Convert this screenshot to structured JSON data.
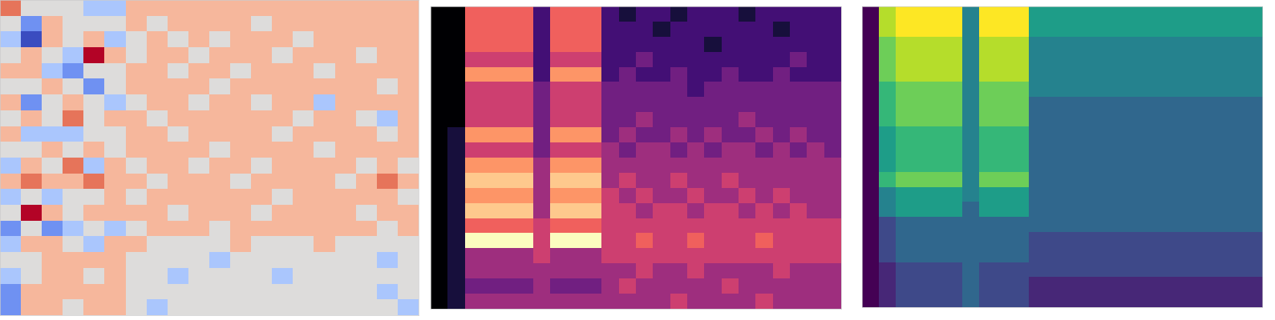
{
  "chart_data": [
    {
      "type": "heatmap",
      "color": "coolwarm",
      "tick_labels": false,
      "cells": [
        [
          2,
          0,
          0,
          0,
          -1,
          -1,
          1,
          1,
          1,
          1,
          1,
          1,
          1,
          1,
          1,
          1,
          1,
          1,
          1,
          1
        ],
        [
          0,
          -2,
          1,
          0,
          0,
          0,
          1,
          0,
          1,
          1,
          1,
          1,
          0,
          1,
          1,
          1,
          1,
          1,
          1,
          1
        ],
        [
          -1,
          -3,
          1,
          0,
          1,
          -1,
          0,
          1,
          0,
          1,
          0,
          1,
          1,
          1,
          0,
          1,
          1,
          1,
          1,
          1
        ],
        [
          0,
          1,
          0,
          -1,
          3,
          1,
          0,
          1,
          1,
          0,
          1,
          1,
          1,
          0,
          1,
          1,
          1,
          0,
          1,
          1
        ],
        [
          1,
          1,
          -1,
          -2,
          0,
          0,
          1,
          1,
          0,
          1,
          1,
          0,
          1,
          1,
          1,
          0,
          1,
          1,
          1,
          1
        ],
        [
          0,
          0,
          1,
          0,
          -2,
          0,
          1,
          1,
          1,
          1,
          0,
          1,
          1,
          1,
          1,
          1,
          1,
          1,
          0,
          1
        ],
        [
          1,
          -2,
          0,
          1,
          0,
          -1,
          0,
          1,
          1,
          0,
          1,
          1,
          0,
          1,
          1,
          -1,
          1,
          1,
          1,
          1
        ],
        [
          0,
          1,
          0,
          2,
          0,
          1,
          1,
          0,
          1,
          1,
          1,
          1,
          1,
          1,
          0,
          1,
          1,
          0,
          -1,
          1
        ],
        [
          1,
          -1,
          -1,
          -1,
          0,
          0,
          1,
          1,
          0,
          1,
          1,
          1,
          1,
          0,
          1,
          1,
          1,
          1,
          0,
          1
        ],
        [
          0,
          0,
          1,
          0,
          1,
          0,
          1,
          1,
          1,
          1,
          0,
          1,
          1,
          1,
          1,
          0,
          1,
          1,
          1,
          1
        ],
        [
          -1,
          1,
          0,
          2,
          -1,
          1,
          0,
          1,
          1,
          0,
          1,
          1,
          0,
          1,
          1,
          1,
          1,
          0,
          1,
          0
        ],
        [
          1,
          2,
          1,
          1,
          2,
          1,
          1,
          0,
          1,
          1,
          1,
          0,
          1,
          1,
          1,
          1,
          0,
          1,
          2,
          1
        ],
        [
          -1,
          0,
          -1,
          0,
          0,
          1,
          0,
          1,
          1,
          1,
          1,
          1,
          1,
          0,
          1,
          1,
          1,
          1,
          1,
          0
        ],
        [
          0,
          3,
          1,
          0,
          1,
          1,
          1,
          1,
          0,
          1,
          1,
          1,
          0,
          1,
          1,
          1,
          1,
          0,
          1,
          1
        ],
        [
          -2,
          0,
          -2,
          -1,
          0,
          -1,
          0,
          1,
          1,
          1,
          0,
          1,
          1,
          1,
          1,
          1,
          1,
          1,
          0,
          1
        ],
        [
          -1,
          1,
          1,
          0,
          -1,
          1,
          1,
          0,
          0,
          0,
          0,
          1,
          0,
          0,
          0,
          1,
          0,
          0,
          0,
          0
        ],
        [
          0,
          0,
          1,
          1,
          1,
          1,
          0,
          0,
          0,
          0,
          -1,
          0,
          0,
          0,
          0,
          0,
          0,
          0,
          -1,
          0
        ],
        [
          -1,
          0,
          1,
          1,
          0,
          1,
          0,
          0,
          -1,
          0,
          0,
          0,
          0,
          -1,
          0,
          0,
          0,
          0,
          0,
          0
        ],
        [
          -2,
          1,
          1,
          1,
          1,
          1,
          0,
          0,
          0,
          0,
          0,
          0,
          0,
          0,
          0,
          0,
          0,
          0,
          -1,
          0
        ],
        [
          -2,
          1,
          1,
          0,
          1,
          1,
          0,
          -1,
          0,
          0,
          0,
          0,
          0,
          0,
          0,
          0,
          0,
          0,
          0,
          -1
        ]
      ]
    },
    {
      "type": "heatmap",
      "color": "magma",
      "tick_labels": false,
      "cells": [
        [
          0,
          0,
          6,
          6,
          6,
          6,
          2,
          6,
          6,
          6,
          2,
          1,
          2,
          2,
          1,
          2,
          2,
          2,
          1,
          2,
          2,
          2,
          2,
          2
        ],
        [
          0,
          0,
          6,
          6,
          6,
          6,
          2,
          6,
          6,
          6,
          2,
          2,
          2,
          1,
          2,
          2,
          2,
          2,
          2,
          2,
          1,
          2,
          2,
          2
        ],
        [
          0,
          0,
          6,
          6,
          6,
          6,
          2,
          6,
          6,
          6,
          2,
          2,
          2,
          2,
          2,
          2,
          1,
          2,
          2,
          2,
          2,
          2,
          2,
          2
        ],
        [
          0,
          0,
          5,
          5,
          5,
          5,
          2,
          5,
          5,
          5,
          2,
          2,
          3,
          2,
          2,
          2,
          2,
          2,
          2,
          2,
          2,
          3,
          2,
          2
        ],
        [
          0,
          0,
          7,
          7,
          7,
          7,
          2,
          7,
          7,
          7,
          2,
          3,
          2,
          2,
          3,
          2,
          2,
          3,
          2,
          2,
          3,
          2,
          2,
          2
        ],
        [
          0,
          0,
          5,
          5,
          5,
          5,
          3,
          5,
          5,
          5,
          3,
          3,
          3,
          3,
          3,
          2,
          3,
          3,
          3,
          3,
          3,
          3,
          3,
          3
        ],
        [
          0,
          0,
          5,
          5,
          5,
          5,
          3,
          5,
          5,
          5,
          3,
          3,
          3,
          3,
          3,
          3,
          3,
          3,
          3,
          3,
          3,
          3,
          3,
          3
        ],
        [
          0,
          0,
          5,
          5,
          5,
          5,
          3,
          5,
          5,
          5,
          3,
          3,
          4,
          3,
          3,
          3,
          3,
          3,
          4,
          3,
          3,
          3,
          3,
          3
        ],
        [
          0,
          1,
          7,
          7,
          7,
          7,
          3,
          7,
          7,
          7,
          3,
          4,
          3,
          3,
          4,
          3,
          4,
          3,
          3,
          4,
          3,
          4,
          3,
          3
        ],
        [
          0,
          1,
          5,
          5,
          5,
          5,
          3,
          5,
          5,
          5,
          4,
          3,
          4,
          4,
          3,
          4,
          3,
          4,
          4,
          3,
          4,
          3,
          4,
          3
        ],
        [
          0,
          1,
          7,
          7,
          7,
          7,
          4,
          7,
          7,
          7,
          4,
          4,
          4,
          4,
          4,
          4,
          4,
          4,
          4,
          4,
          4,
          4,
          4,
          4
        ],
        [
          0,
          1,
          8,
          8,
          8,
          8,
          4,
          8,
          8,
          8,
          4,
          5,
          4,
          4,
          5,
          4,
          4,
          5,
          4,
          4,
          4,
          4,
          4,
          4
        ],
        [
          0,
          1,
          7,
          7,
          7,
          7,
          4,
          7,
          7,
          7,
          5,
          4,
          5,
          4,
          4,
          5,
          4,
          4,
          5,
          4,
          5,
          4,
          4,
          4
        ],
        [
          0,
          1,
          8,
          8,
          8,
          8,
          4,
          8,
          8,
          8,
          5,
          5,
          4,
          5,
          5,
          4,
          5,
          5,
          4,
          5,
          4,
          5,
          4,
          4
        ],
        [
          0,
          1,
          6,
          6,
          6,
          6,
          5,
          6,
          6,
          6,
          5,
          5,
          5,
          5,
          5,
          5,
          5,
          5,
          5,
          5,
          5,
          5,
          5,
          5
        ],
        [
          0,
          1,
          9,
          9,
          9,
          9,
          5,
          9,
          9,
          9,
          5,
          5,
          6,
          5,
          5,
          6,
          5,
          5,
          5,
          6,
          5,
          5,
          5,
          5
        ],
        [
          0,
          1,
          4,
          4,
          4,
          4,
          5,
          4,
          4,
          4,
          5,
          5,
          5,
          5,
          5,
          5,
          5,
          5,
          5,
          5,
          5,
          5,
          5,
          5
        ],
        [
          0,
          1,
          4,
          4,
          4,
          4,
          4,
          4,
          4,
          4,
          4,
          4,
          5,
          4,
          4,
          5,
          4,
          4,
          4,
          4,
          5,
          4,
          4,
          4
        ],
        [
          0,
          1,
          3,
          3,
          3,
          3,
          4,
          3,
          3,
          3,
          4,
          5,
          4,
          4,
          4,
          4,
          4,
          5,
          4,
          4,
          4,
          4,
          4,
          4
        ],
        [
          0,
          1,
          4,
          4,
          4,
          4,
          4,
          4,
          4,
          4,
          4,
          4,
          4,
          4,
          5,
          4,
          4,
          4,
          4,
          5,
          4,
          4,
          4,
          4
        ]
      ]
    },
    {
      "type": "heatmap",
      "color": "viridis",
      "tick_labels": false,
      "cells": [
        [
          0,
          8,
          9,
          9,
          9,
          9,
          4,
          9,
          9,
          9,
          5,
          5,
          5,
          5,
          5,
          5,
          5,
          5,
          5,
          5,
          5,
          5,
          5,
          5
        ],
        [
          0,
          8,
          9,
          9,
          9,
          9,
          4,
          9,
          9,
          9,
          5,
          5,
          5,
          5,
          5,
          5,
          5,
          5,
          5,
          5,
          5,
          5,
          5,
          5
        ],
        [
          0,
          7,
          8,
          8,
          8,
          8,
          4,
          8,
          8,
          8,
          4,
          4,
          4,
          4,
          4,
          4,
          4,
          4,
          4,
          4,
          4,
          4,
          4,
          4
        ],
        [
          0,
          7,
          8,
          8,
          8,
          8,
          4,
          8,
          8,
          8,
          4,
          4,
          4,
          4,
          4,
          4,
          4,
          4,
          4,
          4,
          4,
          4,
          4,
          4
        ],
        [
          0,
          7,
          8,
          8,
          8,
          8,
          4,
          8,
          8,
          8,
          4,
          4,
          4,
          4,
          4,
          4,
          4,
          4,
          4,
          4,
          4,
          4,
          4,
          4
        ],
        [
          0,
          6,
          7,
          7,
          7,
          7,
          4,
          7,
          7,
          7,
          4,
          4,
          4,
          4,
          4,
          4,
          4,
          4,
          4,
          4,
          4,
          4,
          4,
          4
        ],
        [
          0,
          6,
          7,
          7,
          7,
          7,
          4,
          7,
          7,
          7,
          3,
          3,
          3,
          3,
          3,
          3,
          3,
          3,
          3,
          3,
          3,
          3,
          3,
          3
        ],
        [
          0,
          6,
          7,
          7,
          7,
          7,
          4,
          7,
          7,
          7,
          3,
          3,
          3,
          3,
          3,
          3,
          3,
          3,
          3,
          3,
          3,
          3,
          3,
          3
        ],
        [
          0,
          5,
          6,
          6,
          6,
          6,
          4,
          6,
          6,
          6,
          3,
          3,
          3,
          3,
          3,
          3,
          3,
          3,
          3,
          3,
          3,
          3,
          3,
          3
        ],
        [
          0,
          5,
          6,
          6,
          6,
          6,
          4,
          6,
          6,
          6,
          3,
          3,
          3,
          3,
          3,
          3,
          3,
          3,
          3,
          3,
          3,
          3,
          3,
          3
        ],
        [
          0,
          5,
          6,
          6,
          6,
          6,
          4,
          6,
          6,
          6,
          3,
          3,
          3,
          3,
          3,
          3,
          3,
          3,
          3,
          3,
          3,
          3,
          3,
          3
        ],
        [
          0,
          6,
          7,
          7,
          7,
          7,
          4,
          7,
          7,
          7,
          3,
          3,
          3,
          3,
          3,
          3,
          3,
          3,
          3,
          3,
          3,
          3,
          3,
          3
        ],
        [
          0,
          4,
          5,
          5,
          5,
          5,
          4,
          5,
          5,
          5,
          3,
          3,
          3,
          3,
          3,
          3,
          3,
          3,
          3,
          3,
          3,
          3,
          3,
          3
        ],
        [
          0,
          4,
          5,
          5,
          5,
          5,
          3,
          5,
          5,
          5,
          3,
          3,
          3,
          3,
          3,
          3,
          3,
          3,
          3,
          3,
          3,
          3,
          3,
          3
        ],
        [
          0,
          2,
          3,
          3,
          3,
          3,
          3,
          3,
          3,
          3,
          3,
          3,
          3,
          3,
          3,
          3,
          3,
          3,
          3,
          3,
          3,
          3,
          3,
          3
        ],
        [
          0,
          2,
          3,
          3,
          3,
          3,
          3,
          3,
          3,
          3,
          2,
          2,
          2,
          2,
          2,
          2,
          2,
          2,
          2,
          2,
          2,
          2,
          2,
          2
        ],
        [
          0,
          2,
          3,
          3,
          3,
          3,
          3,
          3,
          3,
          3,
          2,
          2,
          2,
          2,
          2,
          2,
          2,
          2,
          2,
          2,
          2,
          2,
          2,
          2
        ],
        [
          0,
          1,
          2,
          2,
          2,
          2,
          3,
          2,
          2,
          2,
          2,
          2,
          2,
          2,
          2,
          2,
          2,
          2,
          2,
          2,
          2,
          2,
          2,
          2
        ],
        [
          0,
          1,
          2,
          2,
          2,
          2,
          3,
          2,
          2,
          2,
          1,
          1,
          1,
          1,
          1,
          1,
          1,
          1,
          1,
          1,
          1,
          1,
          1,
          1
        ],
        [
          0,
          1,
          2,
          2,
          2,
          2,
          3,
          2,
          2,
          2,
          1,
          1,
          1,
          1,
          1,
          1,
          1,
          1,
          1,
          1,
          1,
          1,
          1,
          1
        ]
      ]
    }
  ]
}
